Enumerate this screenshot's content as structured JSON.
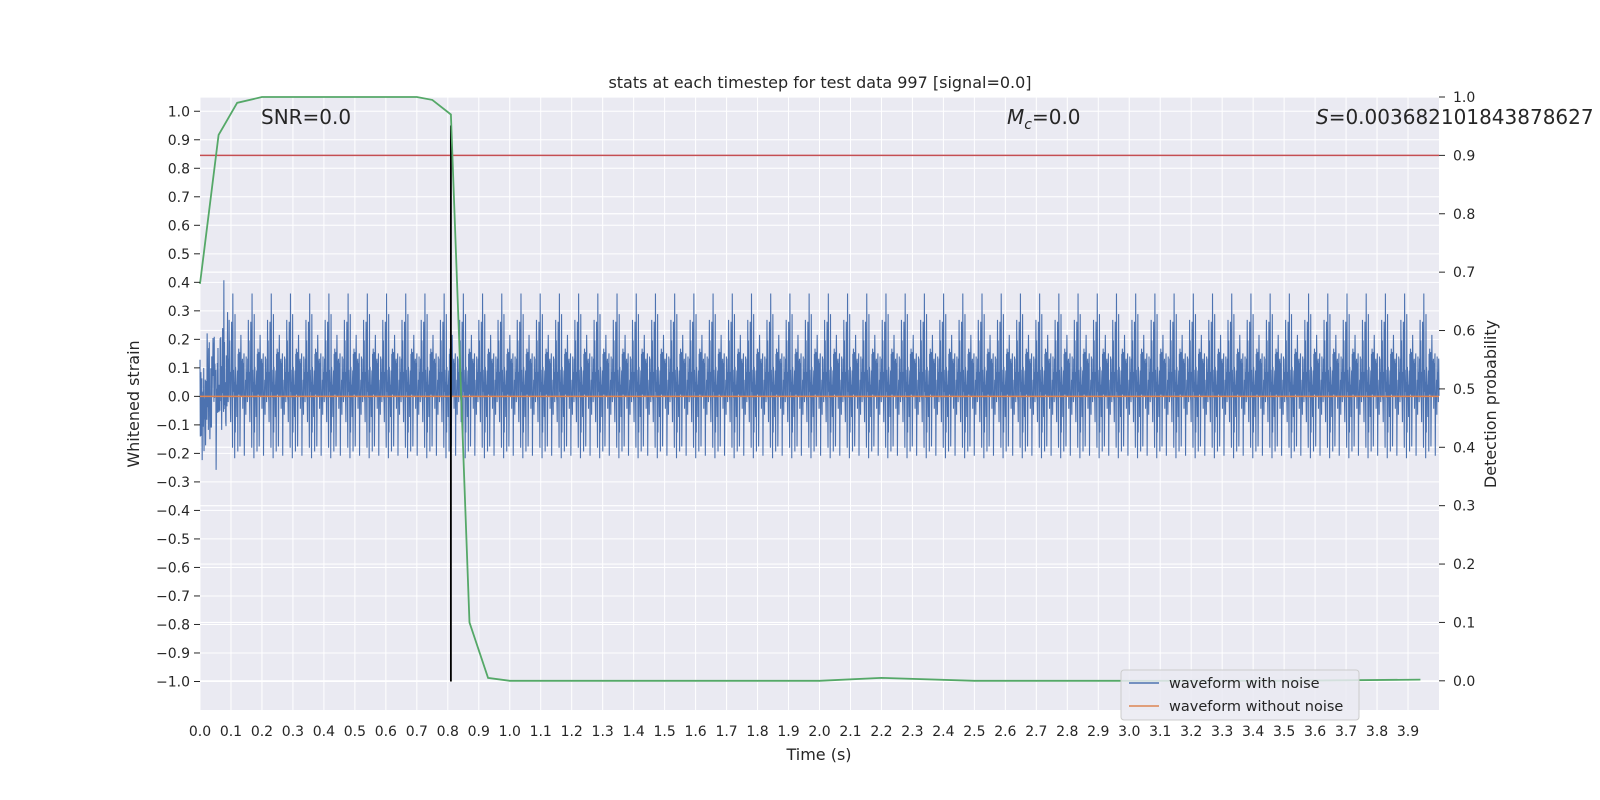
{
  "chart_data": {
    "type": "line",
    "title": "stats at each timestep for test data 997 [signal=0.0]",
    "xlabel": "Time (s)",
    "ylabel_left": "Whitened strain",
    "ylabel_right": "Detection probability",
    "xlim": [
      0.0,
      4.0
    ],
    "ylim_left": [
      -1.1,
      1.05
    ],
    "ylim_right": [
      -0.05,
      1.0
    ],
    "x_ticks": [
      "0.0",
      "0.1",
      "0.2",
      "0.3",
      "0.4",
      "0.5",
      "0.6",
      "0.7",
      "0.8",
      "0.9",
      "1.0",
      "1.1",
      "1.2",
      "1.3",
      "1.4",
      "1.5",
      "1.6",
      "1.7",
      "1.8",
      "1.9",
      "2.0",
      "2.1",
      "2.2",
      "2.3",
      "2.4",
      "2.5",
      "2.6",
      "2.7",
      "2.8",
      "2.9",
      "3.0",
      "3.1",
      "3.2",
      "3.3",
      "3.4",
      "3.5",
      "3.6",
      "3.7",
      "3.8",
      "3.9"
    ],
    "y_ticks_left": [
      "1.0",
      "0.9",
      "0.8",
      "0.7",
      "0.6",
      "0.5",
      "0.4",
      "0.3",
      "0.2",
      "0.1",
      "0.0",
      "−0.1",
      "−0.2",
      "−0.3",
      "−0.4",
      "−0.5",
      "−0.6",
      "−0.7",
      "−0.8",
      "−0.9",
      "−1.0"
    ],
    "y_ticks_right": [
      "1.0",
      "0.9",
      "0.8",
      "0.7",
      "0.6",
      "0.5",
      "0.4",
      "0.3",
      "0.2",
      "0.1",
      "0.0"
    ],
    "grid": true,
    "legend_position": "lower-right",
    "annotations": {
      "snr": "SNR=0.0",
      "mc_symbol": "M",
      "mc_sub": "c",
      "mc_value": "=0.0",
      "s_symbol": "S",
      "s_value": "=0.003682101843878627"
    },
    "series": [
      {
        "name": "waveform with noise",
        "color": "#4c72b0",
        "axis": "left",
        "description_envelope_max": 0.95,
        "description_envelope_min": -1.0
      },
      {
        "name": "waveform without noise",
        "color": "#dd8452",
        "axis": "left",
        "x": [
          0.0,
          4.0
        ],
        "y": [
          0.0,
          0.0
        ]
      },
      {
        "axis": "right",
        "color": "#55a868",
        "x": [
          0.0,
          0.06,
          0.12,
          0.2,
          0.3,
          0.4,
          0.5,
          0.6,
          0.7,
          0.75,
          0.81,
          0.87,
          0.93,
          1.0,
          1.2,
          1.5,
          2.0,
          2.2,
          2.5,
          3.0,
          3.5,
          3.94
        ],
        "y": [
          0.68,
          0.935,
          0.99,
          1.0,
          1.0,
          1.0,
          1.0,
          1.0,
          1.0,
          0.995,
          0.97,
          0.1,
          0.005,
          0.0,
          0.0,
          0.0,
          0.0,
          0.005,
          0.0,
          0.0,
          0.0,
          0.002
        ]
      }
    ],
    "reference_lines": {
      "threshold_right": 0.9,
      "threshold_color": "#c44e52",
      "vertical_x": 0.81,
      "vertical_color": "#000000",
      "vertical_ylim_left": [
        -1.0,
        0.95
      ]
    }
  }
}
